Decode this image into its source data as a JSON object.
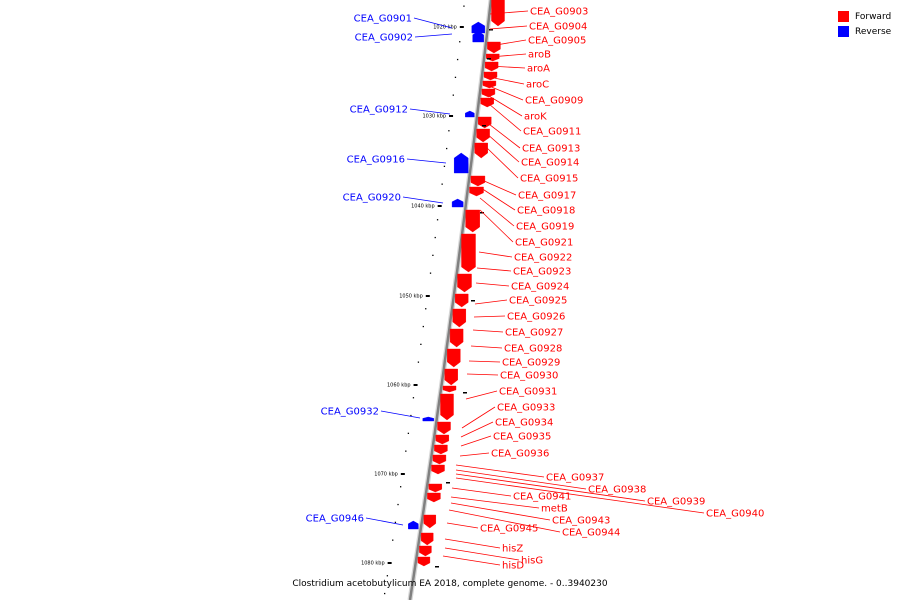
{
  "caption": "Clostridium acetobutylicum EA 2018, complete genome. - 0..3940230",
  "legend": [
    {
      "label": "Forward",
      "color": "#ff0000"
    },
    {
      "label": "Reverse",
      "color": "#0000ff"
    }
  ],
  "colors": {
    "forward": "#ff0000",
    "reverse": "#0000ff",
    "backbone": "#808080"
  },
  "ticks": [
    "1020 kbp",
    "1030 kbp",
    "1040 kbp",
    "1050 kbp",
    "1060 kbp",
    "1070 kbp",
    "1080 kbp"
  ],
  "reverse_genes": [
    "CEA_G0901",
    "CEA_G0902",
    "CEA_G0912",
    "CEA_G0916",
    "CEA_G0920",
    "CEA_G0932",
    "CEA_G0946"
  ],
  "forward_genes": [
    "CEA_G0903",
    "CEA_G0904",
    "CEA_G0905",
    "aroB",
    "aroA",
    "aroC",
    "CEA_G0909",
    "aroK",
    "CEA_G0911",
    "CEA_G0913",
    "CEA_G0914",
    "CEA_G0915",
    "CEA_G0917",
    "CEA_G0918",
    "CEA_G0919",
    "CEA_G0921",
    "CEA_G0922",
    "CEA_G0923",
    "CEA_G0924",
    "CEA_G0925",
    "CEA_G0926",
    "CEA_G0927",
    "CEA_G0928",
    "CEA_G0929",
    "CEA_G0930",
    "CEA_G0931",
    "CEA_G0933",
    "CEA_G0934",
    "CEA_G0935",
    "CEA_G0936",
    "CEA_G0937",
    "CEA_G0938",
    "CEA_G0939",
    "CEA_G0940",
    "CEA_G0941",
    "metB",
    "CEA_G0943",
    "CEA_G0944",
    "CEA_G0945",
    "hisZ",
    "hisG",
    "hisD"
  ]
}
